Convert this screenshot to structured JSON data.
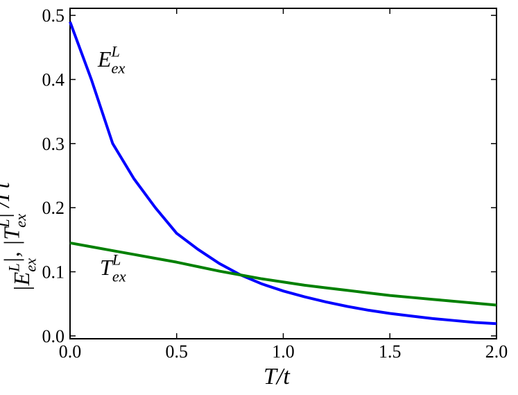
{
  "chart_data": {
    "type": "line",
    "x": [
      0,
      0.1,
      0.2,
      0.3,
      0.4,
      0.5,
      0.6,
      0.7,
      0.8,
      0.9,
      1.0,
      1.1,
      1.2,
      1.3,
      1.4,
      1.5,
      1.6,
      1.7,
      1.8,
      1.9,
      2.0
    ],
    "series": [
      {
        "color": "#0000ff",
        "values": [
          0.49,
          0.4,
          0.3,
          0.245,
          0.2,
          0.16,
          0.135,
          0.113,
          0.095,
          0.081,
          0.07,
          0.061,
          0.053,
          0.046,
          0.04,
          0.035,
          0.031,
          0.027,
          0.024,
          0.021,
          0.019
        ]
      },
      {
        "color": "#008000",
        "values": [
          0.145,
          0.139,
          0.133,
          0.127,
          0.121,
          0.115,
          0.108,
          0.101,
          0.095,
          0.089,
          0.084,
          0.079,
          0.075,
          0.071,
          0.067,
          0.063,
          0.06,
          0.057,
          0.054,
          0.051,
          0.048
        ]
      }
    ],
    "annotations": [
      {
        "parts": [
          {
            "text": "E",
            "sub": "ex",
            "sup": "L"
          }
        ],
        "x": 0.13,
        "y": 0.42
      },
      {
        "parts": [
          {
            "text": "T",
            "sub": "ex",
            "sup": "L"
          }
        ],
        "x": 0.14,
        "y": 0.095
      }
    ],
    "xlabel": [
      {
        "text": "T/t"
      }
    ],
    "ylabel": [
      {
        "text": "|E",
        "sub": "ex",
        "sup": "L"
      },
      {
        "text": "|, |T",
        "sub": "ex",
        "sup": "L"
      },
      {
        "text": "| /Γt"
      }
    ],
    "xlim": [
      0,
      2.0
    ],
    "ylim": [
      -0.0045,
      0.511
    ],
    "xticks": [
      {
        "value": 0,
        "label": "0.0"
      },
      0.5,
      {
        "value": 1.0,
        "label": "1.0"
      },
      1.5,
      {
        "value": 2.0,
        "label": "2.0"
      }
    ],
    "yticks": [
      {
        "value": 0,
        "label": "0.0"
      },
      0.1,
      0.2,
      0.3,
      0.4,
      0.5
    ]
  }
}
